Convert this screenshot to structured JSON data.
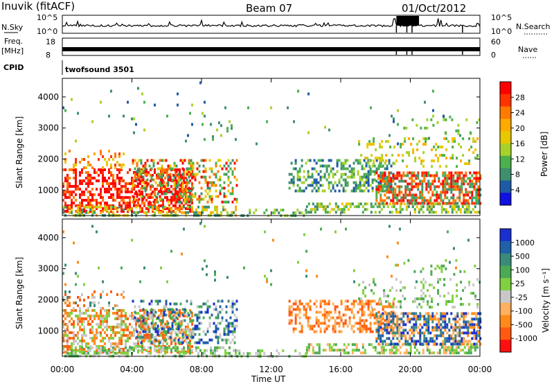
{
  "header": {
    "title": "Inuvik (fitACF)",
    "beam": "Beam 07",
    "date": "01/Oct/2012"
  },
  "top_panels": {
    "nsky_label": "N.Sky",
    "nsky_ticks": [
      "10^5",
      "10^0"
    ],
    "nsearch_label": "N.Search",
    "nsearch_ticks": [
      "10^5",
      "10^0"
    ],
    "freq_label_1": "Freq.",
    "freq_label_2": "[MHz]",
    "freq_ticks": [
      "18",
      "8"
    ],
    "nave_label": "Nave",
    "nave_ticks": [
      "60",
      "0"
    ],
    "cpid_label": "CPID",
    "cpid_value": "twofsound 3501"
  },
  "chart_data": [
    {
      "type": "heatmap",
      "panel": "power",
      "ylabel": "Slant Range [km]",
      "ylim": [
        180,
        4600
      ],
      "yticks": [
        1000,
        2000,
        3000,
        4000
      ],
      "xlim": [
        0,
        24
      ],
      "colorbar": {
        "label": "Power [dB]",
        "ticks": [
          "28",
          "24",
          "20",
          "16",
          "12",
          "8",
          "4"
        ],
        "colors": [
          "#ff0000",
          "#ff3300",
          "#ff7a00",
          "#ffaa00",
          "#e8c800",
          "#a8d22a",
          "#4cb04c",
          "#3f8f6f",
          "#1f5aa6",
          "#1010e0"
        ]
      }
    },
    {
      "type": "heatmap",
      "panel": "velocity",
      "xlabel": "Time UT",
      "ylabel": "Slant Range [km]",
      "ylim": [
        180,
        4600
      ],
      "yticks": [
        1000,
        2000,
        3000,
        4000
      ],
      "xlim": [
        0,
        24
      ],
      "xticks": [
        "00:00",
        "04:00",
        "08:00",
        "12:00",
        "16:00",
        "20:00",
        "00:00"
      ],
      "colorbar": {
        "label": "Velocity [m s⁻¹]",
        "ticks": [
          "1000",
          "500",
          "100",
          "25",
          "-25",
          "-100",
          "-500",
          "-1000"
        ],
        "colors": [
          "#1a2fcf",
          "#2060a8",
          "#3a8a7a",
          "#4caa55",
          "#80d040",
          "#c8c8c8",
          "#ffb060",
          "#ff8a1a",
          "#ff5a10",
          "#ff1010"
        ]
      }
    }
  ]
}
